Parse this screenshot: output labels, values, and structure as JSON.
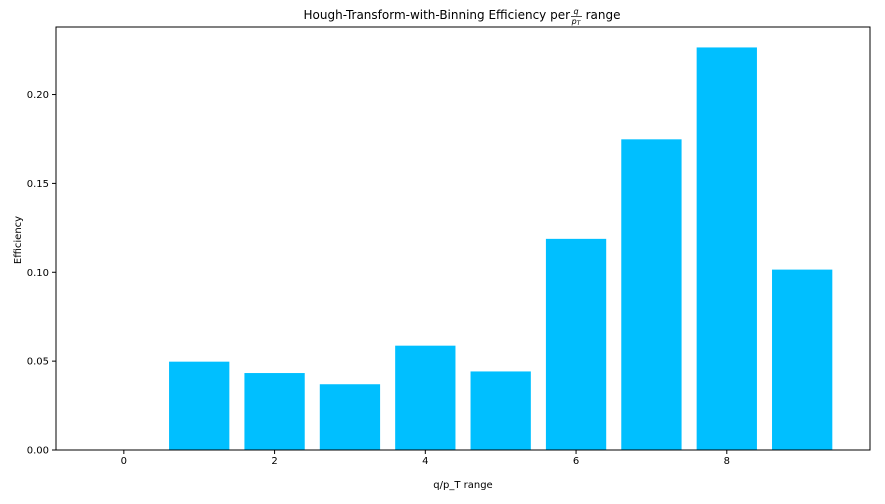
{
  "chart_data": {
    "type": "bar",
    "title": {
      "prefix": "Hough-Transform-with-Binning Efficiency per ",
      "fraction_numerator": "q",
      "fraction_denominator_main": "p",
      "fraction_denominator_sub": "T",
      "suffix": " range"
    },
    "xlabel": "q/p_T range",
    "ylabel": "Efficiency",
    "x": [
      0,
      1,
      2,
      3,
      4,
      5,
      6,
      7,
      8,
      9
    ],
    "values": [
      0.0,
      0.0497,
      0.0433,
      0.037,
      0.0587,
      0.0442,
      0.1188,
      0.1748,
      0.2265,
      0.1015
    ],
    "xlim": [
      -0.9,
      9.9
    ],
    "ylim": [
      0,
      0.238
    ],
    "xticks": [
      0,
      2,
      4,
      6,
      8
    ],
    "xtick_labels": [
      "0",
      "2",
      "4",
      "6",
      "8"
    ],
    "yticks": [
      0,
      0.05,
      0.1,
      0.15,
      0.2
    ],
    "ytick_labels": [
      "0.00",
      "0.05",
      "0.10",
      "0.15",
      "0.20"
    ],
    "bar_color": "#00bfff",
    "grid": false,
    "legend": "none"
  }
}
